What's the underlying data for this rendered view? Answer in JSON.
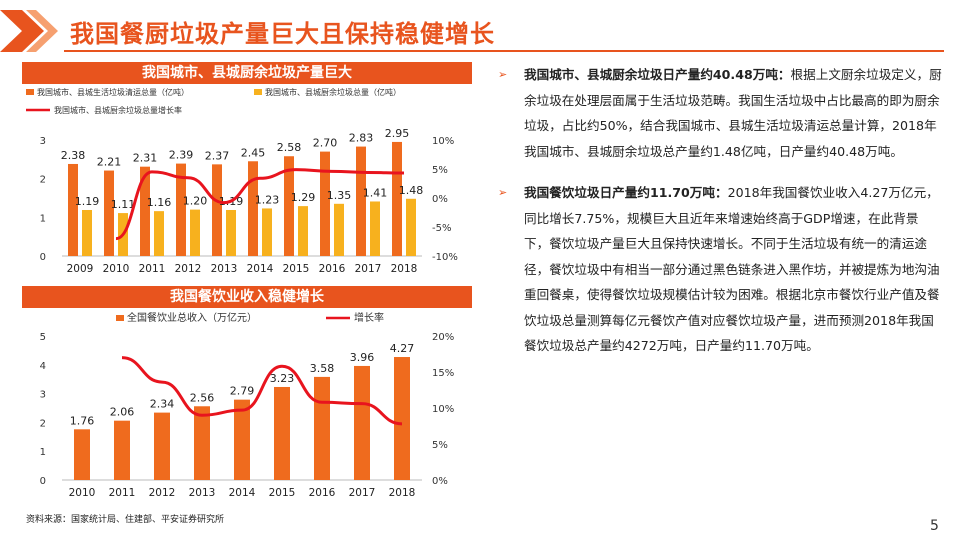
{
  "slide": {
    "title": "我国餐厨垃圾产量巨大且保持稳健增长",
    "page_number": "5",
    "source": "资料来源：国家统计局、住建部、平安证券研究所",
    "accent_color": "#e8541e",
    "bar_primary_color": "#ef6b1e",
    "bar_secondary_color": "#f7b11e",
    "line_color": "#e8141e"
  },
  "bullets": [
    {
      "head": "我国城市、县城厨余垃圾日产量约40.48万吨：",
      "body": "根据上文厨余垃圾定义，厨余垃圾在处理层面属于生活垃圾范畴。我国生活垃圾中占比最高的即为厨余垃圾，占比约50%，结合我国城市、县城生活垃圾清运总量计算，2018年我国城市、县城厨余垃圾总产量约1.48亿吨，日产量约40.48万吨。"
    },
    {
      "head": "我国餐饮垃圾日产量约11.70万吨：",
      "body": "2018年我国餐饮业收入4.27万亿元，同比增长7.75%，规模巨大且近年来增速始终高于GDP增速，在此背景下，餐饮垃圾产量巨大且保持快速增长。不同于生活垃圾有统一的清运途径，餐饮垃圾中有相当一部分通过黑色链条进入黑作坊，并被提炼为地沟油重回餐桌，使得餐饮垃圾规模估计较为困难。根据北京市餐饮行业产值及餐饮垃圾总量测算每亿元餐饮产值对应餐饮垃圾产量，进而预测2018年我国餐饮垃圾总产量约4272万吨，日产量约11.70万吨。"
    }
  ],
  "chart_data": [
    {
      "type": "bar",
      "title": "我国城市、县城厨余垃圾产量巨大",
      "categories": [
        "2009",
        "2010",
        "2011",
        "2012",
        "2013",
        "2014",
        "2015",
        "2016",
        "2017",
        "2018"
      ],
      "series": [
        {
          "name": "我国城市、县城生活垃圾清运总量（亿吨）",
          "kind": "bar",
          "values": [
            2.38,
            2.21,
            2.31,
            2.39,
            2.37,
            2.45,
            2.58,
            2.7,
            2.83,
            2.95
          ]
        },
        {
          "name": "我国城市、县城厨余垃圾总量（亿吨）",
          "kind": "bar",
          "values": [
            1.19,
            1.11,
            1.16,
            1.2,
            1.19,
            1.23,
            1.29,
            1.35,
            1.41,
            1.48
          ]
        },
        {
          "name": "我国城市、县城厨余垃圾总量增长率",
          "kind": "line",
          "axis": "right",
          "values": [
            null,
            -7.0,
            4.5,
            3.5,
            -0.8,
            3.4,
            4.9,
            4.6,
            4.4,
            4.3
          ]
        }
      ],
      "y_left": {
        "ticks": [
          "0",
          "1",
          "2",
          "3"
        ],
        "ylim": [
          0,
          3
        ]
      },
      "y_right": {
        "ticks": [
          "-10%",
          "-5%",
          "0%",
          "5%",
          "10%"
        ],
        "ylim": [
          -10,
          10
        ]
      },
      "bar_labels": [
        [
          "2.38",
          "2.21",
          "2.31",
          "2.39",
          "2.37",
          "2.45",
          "2.58",
          "2.70",
          "2.83",
          "2.95"
        ],
        [
          "1.19",
          "1.11",
          "1.16",
          "1.20",
          "1.19",
          "1.23",
          "1.29",
          "1.35",
          "1.41",
          "1.48"
        ]
      ]
    },
    {
      "type": "bar",
      "title": "我国餐饮业收入稳健增长",
      "categories": [
        "2010",
        "2011",
        "2012",
        "2013",
        "2014",
        "2015",
        "2016",
        "2017",
        "2018"
      ],
      "series": [
        {
          "name": "全国餐饮业总收入（万亿元）",
          "kind": "bar",
          "values": [
            1.76,
            2.06,
            2.34,
            2.56,
            2.79,
            3.23,
            3.58,
            3.96,
            4.27
          ]
        },
        {
          "name": "增长率",
          "kind": "line",
          "axis": "right",
          "values": [
            null,
            17.0,
            13.6,
            9.0,
            9.7,
            15.8,
            10.8,
            10.6,
            7.8
          ]
        }
      ],
      "y_left": {
        "ticks": [
          "0",
          "1",
          "2",
          "3",
          "4",
          "5"
        ],
        "ylim": [
          0,
          5
        ]
      },
      "y_right": {
        "ticks": [
          "0%",
          "5%",
          "10%",
          "15%",
          "20%"
        ],
        "ylim": [
          0,
          20
        ]
      },
      "bar_labels": [
        [
          "1.76",
          "2.06",
          "2.34",
          "2.56",
          "2.79",
          "3.23",
          "3.58",
          "3.96",
          "4.27"
        ]
      ]
    }
  ]
}
